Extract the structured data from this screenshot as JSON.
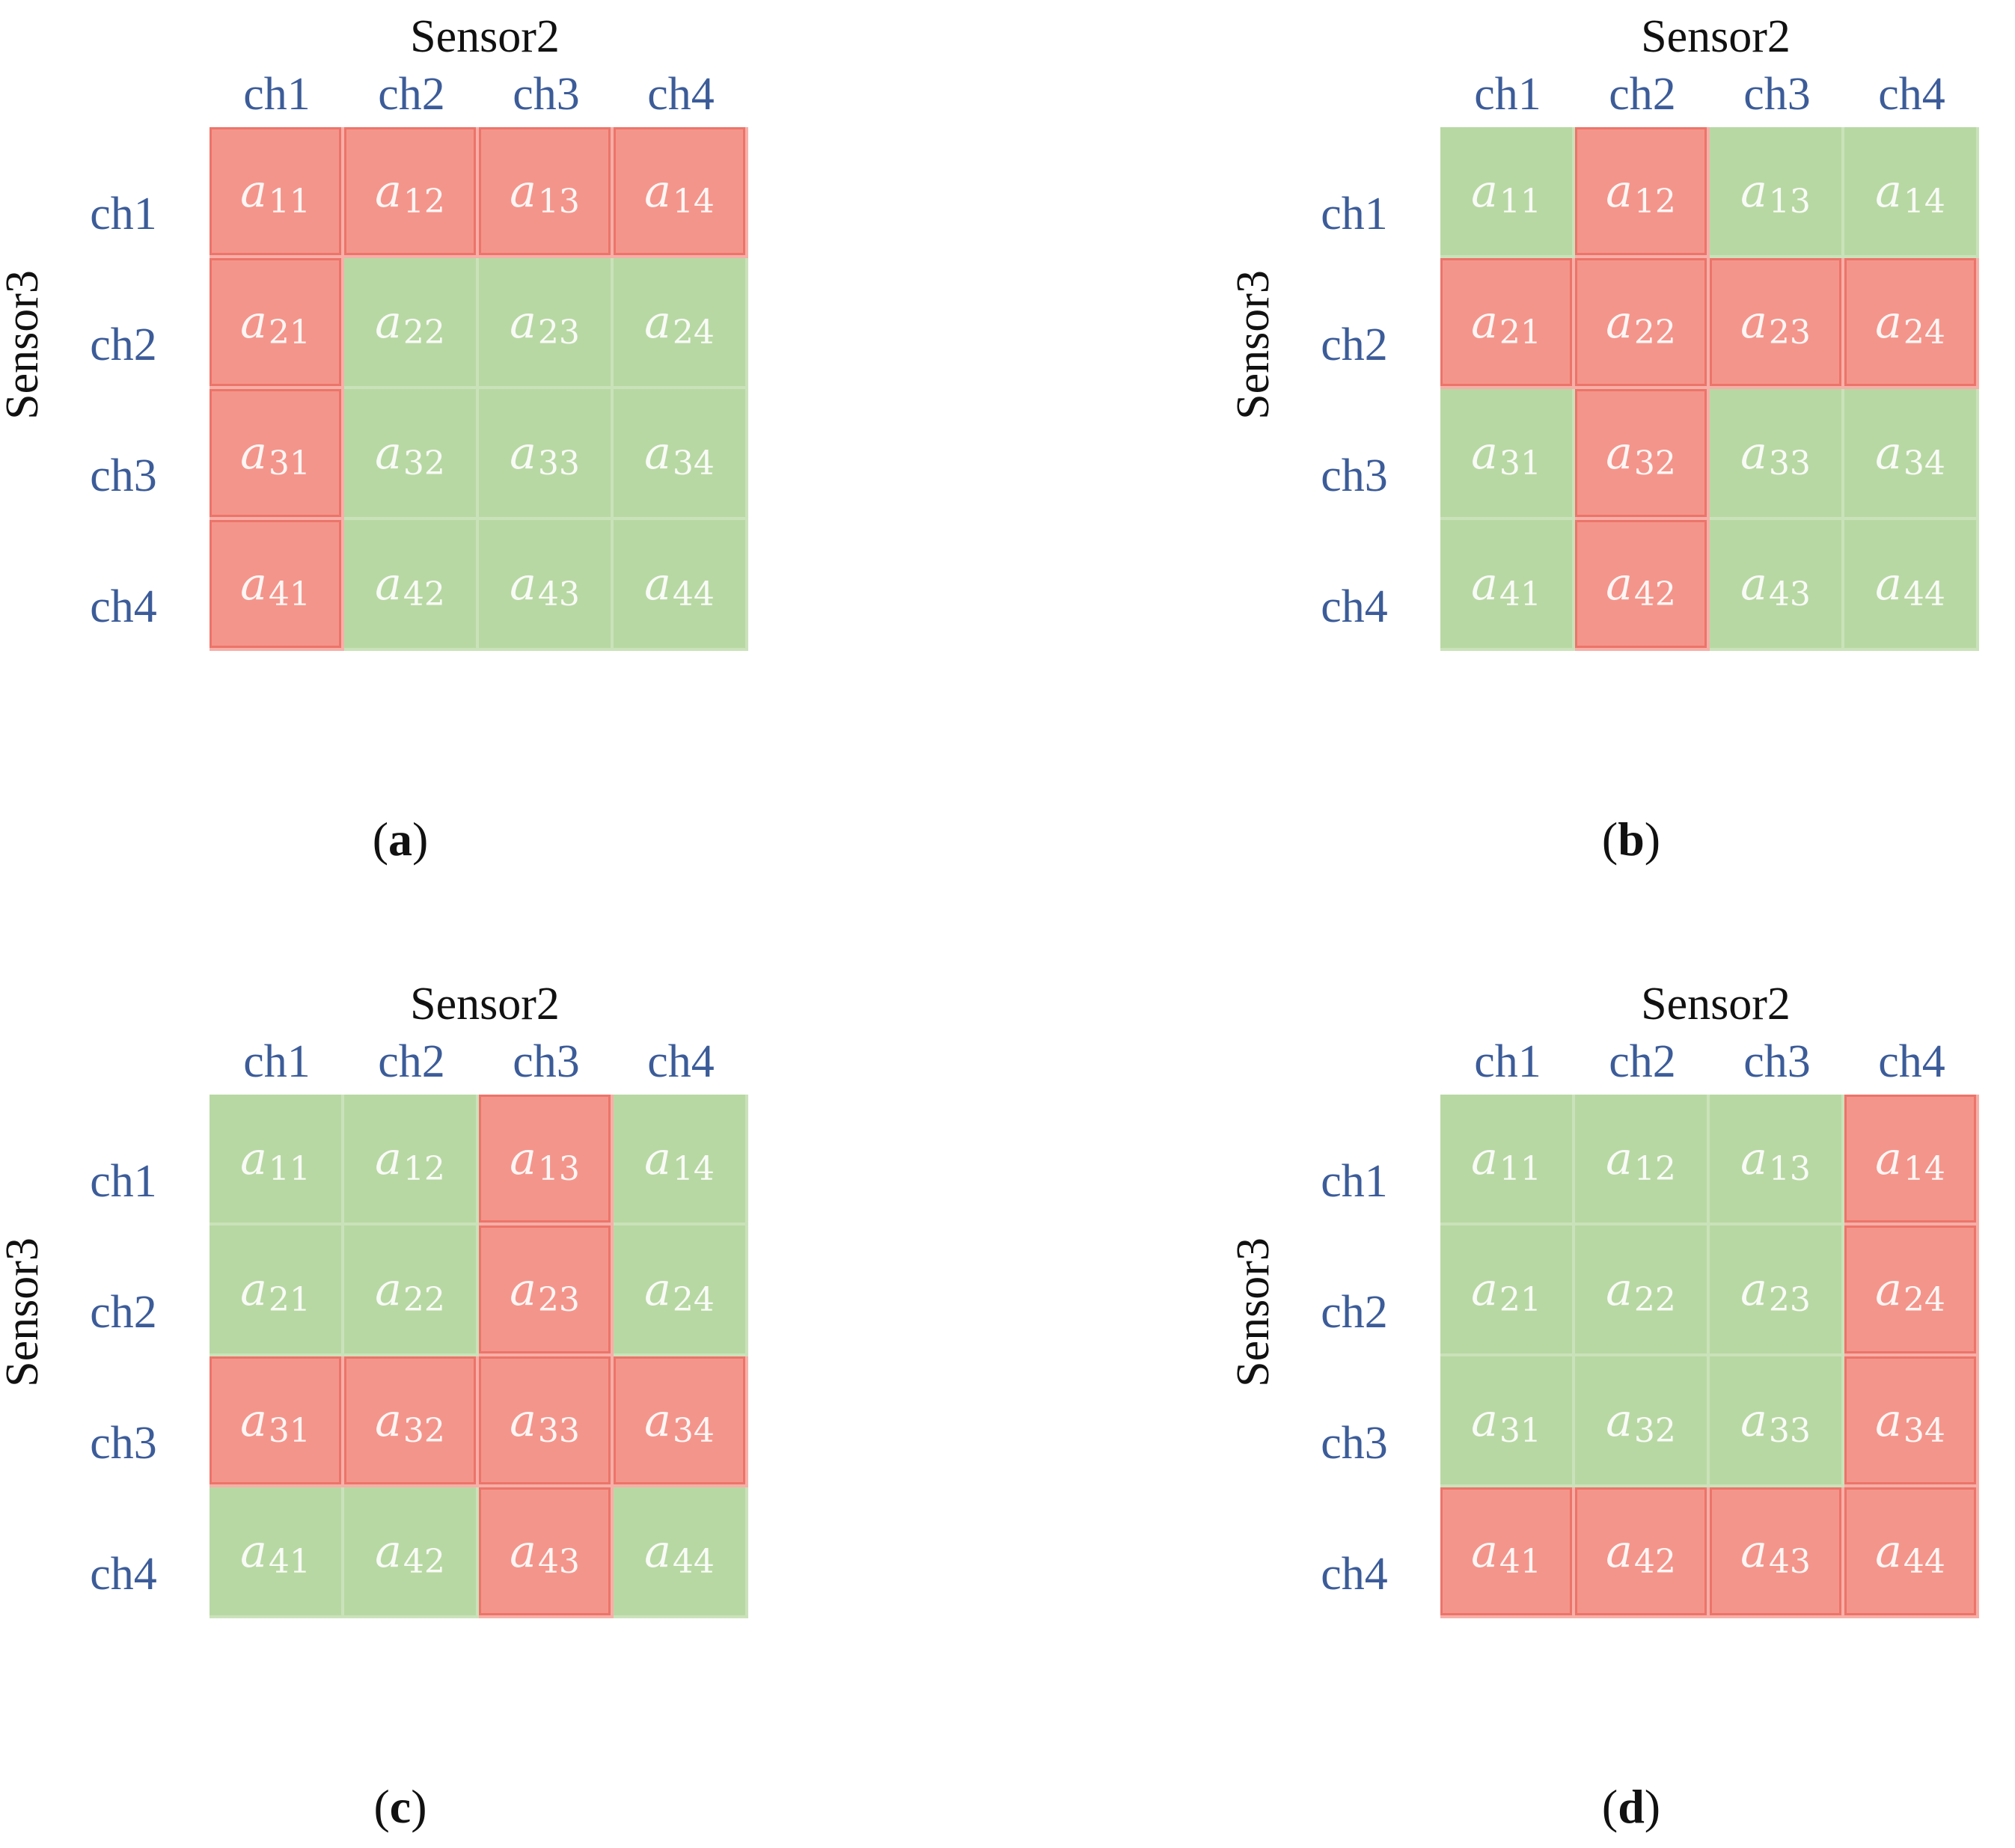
{
  "colors": {
    "red": "#F4958B",
    "green": "#B8D8A3",
    "label_blue": "#3C5C99",
    "text": "#111111"
  },
  "cell_symbol": "a",
  "channels": [
    "ch1",
    "ch2",
    "ch3",
    "ch4"
  ],
  "panels": [
    {
      "x_sensor": "Sensor2",
      "y_sensor": "Sensor3",
      "caption": {
        "open": "(",
        "letter": "a",
        "close": ")"
      },
      "cells": [
        {
          "sub": "11",
          "state": "red"
        },
        {
          "sub": "12",
          "state": "red"
        },
        {
          "sub": "13",
          "state": "red"
        },
        {
          "sub": "14",
          "state": "red"
        },
        {
          "sub": "21",
          "state": "red"
        },
        {
          "sub": "22",
          "state": "green"
        },
        {
          "sub": "23",
          "state": "green"
        },
        {
          "sub": "24",
          "state": "green"
        },
        {
          "sub": "31",
          "state": "red"
        },
        {
          "sub": "32",
          "state": "green"
        },
        {
          "sub": "33",
          "state": "green"
        },
        {
          "sub": "34",
          "state": "green"
        },
        {
          "sub": "41",
          "state": "red"
        },
        {
          "sub": "42",
          "state": "green"
        },
        {
          "sub": "43",
          "state": "green"
        },
        {
          "sub": "44",
          "state": "green"
        }
      ]
    },
    {
      "x_sensor": "Sensor2",
      "y_sensor": "Sensor3",
      "caption": {
        "open": "(",
        "letter": "b",
        "close": ")"
      },
      "cells": [
        {
          "sub": "11",
          "state": "green"
        },
        {
          "sub": "12",
          "state": "red"
        },
        {
          "sub": "13",
          "state": "green"
        },
        {
          "sub": "14",
          "state": "green"
        },
        {
          "sub": "21",
          "state": "red"
        },
        {
          "sub": "22",
          "state": "red"
        },
        {
          "sub": "23",
          "state": "red"
        },
        {
          "sub": "24",
          "state": "red"
        },
        {
          "sub": "31",
          "state": "green"
        },
        {
          "sub": "32",
          "state": "red"
        },
        {
          "sub": "33",
          "state": "green"
        },
        {
          "sub": "34",
          "state": "green"
        },
        {
          "sub": "41",
          "state": "green"
        },
        {
          "sub": "42",
          "state": "red"
        },
        {
          "sub": "43",
          "state": "green"
        },
        {
          "sub": "44",
          "state": "green"
        }
      ]
    },
    {
      "x_sensor": "Sensor2",
      "y_sensor": "Sensor3",
      "caption": {
        "open": "(",
        "letter": "c",
        "close": ")"
      },
      "cells": [
        {
          "sub": "11",
          "state": "green"
        },
        {
          "sub": "12",
          "state": "green"
        },
        {
          "sub": "13",
          "state": "red"
        },
        {
          "sub": "14",
          "state": "green"
        },
        {
          "sub": "21",
          "state": "green"
        },
        {
          "sub": "22",
          "state": "green"
        },
        {
          "sub": "23",
          "state": "red"
        },
        {
          "sub": "24",
          "state": "green"
        },
        {
          "sub": "31",
          "state": "red"
        },
        {
          "sub": "32",
          "state": "red"
        },
        {
          "sub": "33",
          "state": "red"
        },
        {
          "sub": "34",
          "state": "red"
        },
        {
          "sub": "41",
          "state": "green"
        },
        {
          "sub": "42",
          "state": "green"
        },
        {
          "sub": "43",
          "state": "red"
        },
        {
          "sub": "44",
          "state": "green"
        }
      ]
    },
    {
      "x_sensor": "Sensor2",
      "y_sensor": "Sensor3",
      "caption": {
        "open": "(",
        "letter": "d",
        "close": ")"
      },
      "cells": [
        {
          "sub": "11",
          "state": "green"
        },
        {
          "sub": "12",
          "state": "green"
        },
        {
          "sub": "13",
          "state": "green"
        },
        {
          "sub": "14",
          "state": "red"
        },
        {
          "sub": "21",
          "state": "green"
        },
        {
          "sub": "22",
          "state": "green"
        },
        {
          "sub": "23",
          "state": "green"
        },
        {
          "sub": "24",
          "state": "red"
        },
        {
          "sub": "31",
          "state": "green"
        },
        {
          "sub": "32",
          "state": "green"
        },
        {
          "sub": "33",
          "state": "green"
        },
        {
          "sub": "34",
          "state": "red"
        },
        {
          "sub": "41",
          "state": "red"
        },
        {
          "sub": "42",
          "state": "red"
        },
        {
          "sub": "43",
          "state": "red"
        },
        {
          "sub": "44",
          "state": "red"
        }
      ]
    }
  ]
}
